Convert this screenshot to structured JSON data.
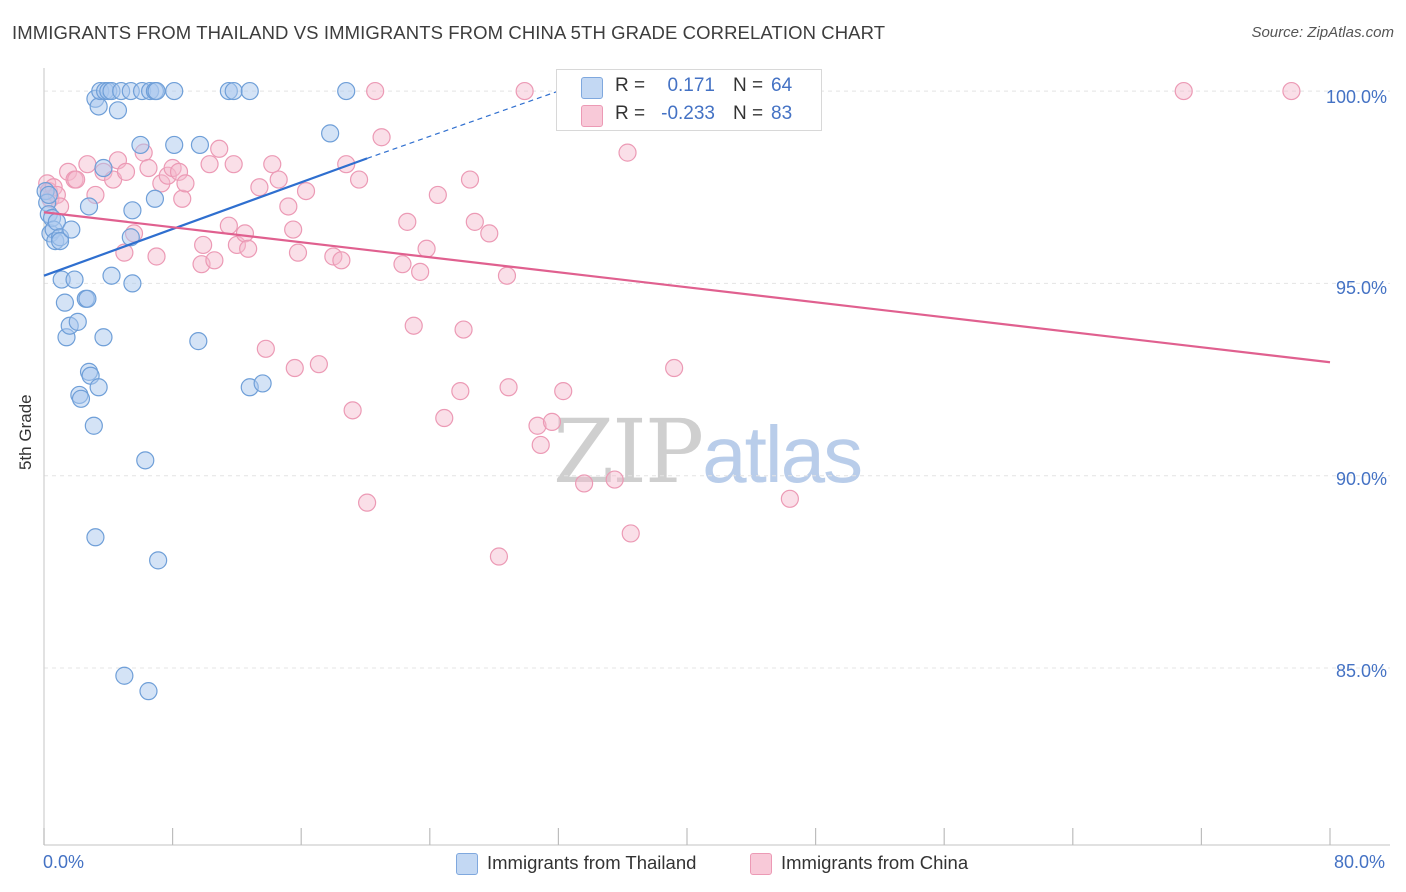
{
  "header": {
    "title": "IMMIGRANTS FROM THAILAND VS IMMIGRANTS FROM CHINA 5TH GRADE CORRELATION CHART",
    "source": "Source: ZipAtlas.com"
  },
  "watermark": {
    "zip": "ZIP",
    "atlas": "atlas"
  },
  "legend": {
    "thailand": {
      "r_key": "R =",
      "r_val": "0.171",
      "n_key": "N =",
      "n_val": "64"
    },
    "china": {
      "r_key": "R =",
      "r_val": "-0.233",
      "n_key": "N =",
      "n_val": "83"
    }
  },
  "bottom_legend": {
    "thailand": "Immigrants from Thailand",
    "china": "Immigrants from China"
  },
  "colors": {
    "thailand_fill": "#aac8ee",
    "thailand_stroke": "#6f9fd8",
    "thailand_line": "#2f6fcf",
    "china_fill": "#f5b9cc",
    "china_stroke": "#ec9ab5",
    "china_line": "#e0608f",
    "axis_text": "#4472c4",
    "grid": "#e4e4e4"
  },
  "chart_data": {
    "type": "scatter",
    "title": "IMMIGRANTS FROM THAILAND VS IMMIGRANTS FROM CHINA 5TH GRADE CORRELATION CHART",
    "xlabel": "",
    "ylabel": "5th Grade",
    "x_tick_labels": [
      "0.0%",
      "80.0%"
    ],
    "y_tick_labels": [
      "100.0%",
      "95.0%",
      "90.0%",
      "85.0%"
    ],
    "y_ticks": [
      100,
      95,
      90,
      85
    ],
    "xlim": [
      0,
      80
    ],
    "ylim": [
      80.4,
      100.6
    ],
    "grid": true,
    "legend_position": "top-center",
    "series": [
      {
        "name": "Immigrants from Thailand",
        "R": 0.171,
        "N": 64,
        "trend": {
          "x0": 0,
          "y0": 95.2,
          "x1": 20.1,
          "y1": 98.25,
          "dashed_to_x": 32,
          "dashed_to_y": 100.0
        },
        "points": [
          [
            0.1,
            97.4
          ],
          [
            0.2,
            97.1
          ],
          [
            0.3,
            97.3
          ],
          [
            0.3,
            96.8
          ],
          [
            0.4,
            96.3
          ],
          [
            0.5,
            96.7
          ],
          [
            0.6,
            96.4
          ],
          [
            0.7,
            96.1
          ],
          [
            0.8,
            96.6
          ],
          [
            1.0,
            96.2
          ],
          [
            1.0,
            96.1
          ],
          [
            1.1,
            95.1
          ],
          [
            1.3,
            94.5
          ],
          [
            1.4,
            93.6
          ],
          [
            1.6,
            93.9
          ],
          [
            1.7,
            96.4
          ],
          [
            1.9,
            95.1
          ],
          [
            2.1,
            94.0
          ],
          [
            2.2,
            92.1
          ],
          [
            2.3,
            92.0
          ],
          [
            2.6,
            94.6
          ],
          [
            2.7,
            94.6
          ],
          [
            2.8,
            92.7
          ],
          [
            2.9,
            92.6
          ],
          [
            3.1,
            91.3
          ],
          [
            3.2,
            88.4
          ],
          [
            3.4,
            92.3
          ],
          [
            3.7,
            93.6
          ],
          [
            4.2,
            95.2
          ],
          [
            3.7,
            98.0
          ],
          [
            3.2,
            99.8
          ],
          [
            3.4,
            99.6
          ],
          [
            3.5,
            100.0
          ],
          [
            3.8,
            100.0
          ],
          [
            4.0,
            100.0
          ],
          [
            4.2,
            100.0
          ],
          [
            4.6,
            99.5
          ],
          [
            4.8,
            100.0
          ],
          [
            5.0,
            84.8
          ],
          [
            5.4,
            100.0
          ],
          [
            5.4,
            96.2
          ],
          [
            5.5,
            96.9
          ],
          [
            5.5,
            95.0
          ],
          [
            6.0,
            98.6
          ],
          [
            6.1,
            100.0
          ],
          [
            6.3,
            90.4
          ],
          [
            6.5,
            84.4
          ],
          [
            6.6,
            100.0
          ],
          [
            6.9,
            97.2
          ],
          [
            6.9,
            100.0
          ],
          [
            7.0,
            100.0
          ],
          [
            7.1,
            87.8
          ],
          [
            8.1,
            100.0
          ],
          [
            8.1,
            98.6
          ],
          [
            9.6,
            93.5
          ],
          [
            9.7,
            98.6
          ],
          [
            11.5,
            100.0
          ],
          [
            11.8,
            100.0
          ],
          [
            12.8,
            92.3
          ],
          [
            12.8,
            100.0
          ],
          [
            13.6,
            92.4
          ],
          [
            17.8,
            98.9
          ],
          [
            18.8,
            100.0
          ],
          [
            2.8,
            97.0
          ]
        ]
      },
      {
        "name": "Immigrants from China",
        "R": -0.233,
        "N": 83,
        "trend": {
          "x0": 0,
          "y0": 96.85,
          "x1": 80,
          "y1": 92.95
        },
        "points": [
          [
            0.2,
            97.6
          ],
          [
            0.3,
            97.4
          ],
          [
            0.4,
            97.2
          ],
          [
            0.6,
            97.5
          ],
          [
            0.8,
            97.3
          ],
          [
            1.0,
            97.0
          ],
          [
            1.5,
            97.9
          ],
          [
            1.9,
            97.7
          ],
          [
            2.0,
            97.7
          ],
          [
            2.7,
            98.1
          ],
          [
            3.2,
            97.3
          ],
          [
            3.7,
            97.9
          ],
          [
            4.3,
            97.7
          ],
          [
            4.6,
            98.2
          ],
          [
            5.0,
            95.8
          ],
          [
            5.1,
            97.9
          ],
          [
            5.6,
            96.3
          ],
          [
            6.2,
            98.4
          ],
          [
            6.5,
            98.0
          ],
          [
            7.0,
            95.7
          ],
          [
            7.3,
            97.6
          ],
          [
            7.7,
            97.8
          ],
          [
            8.0,
            98.0
          ],
          [
            8.4,
            97.9
          ],
          [
            8.6,
            97.2
          ],
          [
            8.8,
            97.6
          ],
          [
            9.8,
            95.5
          ],
          [
            9.9,
            96.0
          ],
          [
            10.3,
            98.1
          ],
          [
            10.6,
            95.6
          ],
          [
            10.9,
            98.5
          ],
          [
            11.5,
            96.5
          ],
          [
            11.8,
            98.1
          ],
          [
            12.0,
            96.0
          ],
          [
            12.5,
            96.3
          ],
          [
            12.7,
            95.9
          ],
          [
            13.4,
            97.5
          ],
          [
            13.8,
            93.3
          ],
          [
            14.2,
            98.1
          ],
          [
            14.6,
            97.7
          ],
          [
            15.2,
            97.0
          ],
          [
            15.5,
            96.4
          ],
          [
            15.6,
            92.8
          ],
          [
            15.8,
            95.8
          ],
          [
            16.3,
            97.4
          ],
          [
            17.1,
            92.9
          ],
          [
            18.0,
            95.7
          ],
          [
            18.5,
            95.6
          ],
          [
            18.8,
            98.1
          ],
          [
            19.2,
            91.7
          ],
          [
            19.6,
            97.7
          ],
          [
            20.1,
            89.3
          ],
          [
            20.6,
            100.0
          ],
          [
            21.0,
            98.8
          ],
          [
            22.3,
            95.5
          ],
          [
            22.6,
            96.6
          ],
          [
            23.0,
            93.9
          ],
          [
            23.4,
            95.3
          ],
          [
            23.8,
            95.9
          ],
          [
            24.5,
            97.3
          ],
          [
            24.9,
            91.5
          ],
          [
            25.9,
            92.2
          ],
          [
            26.1,
            93.8
          ],
          [
            26.5,
            97.7
          ],
          [
            26.8,
            96.6
          ],
          [
            27.7,
            96.3
          ],
          [
            28.3,
            87.9
          ],
          [
            28.8,
            95.2
          ],
          [
            28.9,
            92.3
          ],
          [
            29.9,
            100.0
          ],
          [
            30.7,
            91.3
          ],
          [
            30.9,
            90.8
          ],
          [
            31.6,
            91.4
          ],
          [
            32.3,
            92.2
          ],
          [
            33.1,
            100.0
          ],
          [
            33.6,
            89.8
          ],
          [
            35.5,
            89.9
          ],
          [
            36.3,
            98.4
          ],
          [
            36.5,
            88.5
          ],
          [
            39.2,
            92.8
          ],
          [
            46.4,
            89.4
          ],
          [
            70.9,
            100.0
          ],
          [
            77.6,
            100.0
          ]
        ]
      }
    ]
  }
}
